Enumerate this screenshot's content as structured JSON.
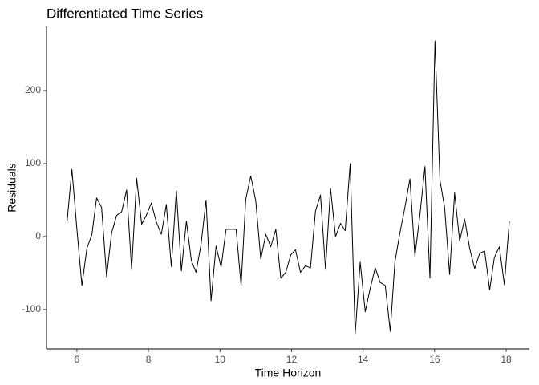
{
  "chart_data": {
    "type": "line",
    "title": "Differentiated Time Series",
    "x_label": "Time Horizon",
    "y_label": "Residuals",
    "x": [
      5.72,
      5.86,
      6.0,
      6.14,
      6.28,
      6.42,
      6.55,
      6.69,
      6.83,
      6.97,
      7.11,
      7.25,
      7.39,
      7.53,
      7.67,
      7.81,
      7.94,
      8.08,
      8.22,
      8.36,
      8.5,
      8.64,
      8.78,
      8.92,
      9.06,
      9.2,
      9.33,
      9.47,
      9.61,
      9.75,
      9.89,
      10.03,
      10.17,
      10.31,
      10.45,
      10.59,
      10.72,
      10.86,
      11.0,
      11.14,
      11.28,
      11.42,
      11.56,
      11.7,
      11.84,
      11.98,
      12.11,
      12.25,
      12.39,
      12.53,
      12.67,
      12.81,
      12.95,
      13.09,
      13.23,
      13.37,
      13.5,
      13.64,
      13.78,
      13.92,
      14.06,
      14.2,
      14.34,
      14.48,
      14.62,
      14.76,
      14.89,
      15.03,
      15.17,
      15.31,
      15.45,
      15.59,
      15.73,
      15.87,
      16.01,
      16.15,
      16.28,
      16.42,
      16.56,
      16.7,
      16.84,
      16.98,
      17.12,
      17.26,
      17.4,
      17.54,
      17.67,
      17.81,
      17.95,
      18.09
    ],
    "series": [
      {
        "name": "Residuals",
        "color": "#000000",
        "values": [
          18,
          92,
          10,
          -67,
          -16,
          3,
          53,
          40,
          -55,
          5,
          29,
          34,
          64,
          -45,
          80,
          17,
          29,
          46,
          20,
          3,
          44,
          -41,
          63,
          -47,
          21,
          -33,
          -49,
          -11,
          50,
          -88,
          -13,
          -42,
          10,
          10,
          10,
          -67,
          51,
          83,
          49,
          -31,
          3,
          -14,
          10,
          -57,
          -49,
          -25,
          -18,
          -49,
          -40,
          -43,
          35,
          57,
          -45,
          66,
          0,
          18,
          8,
          100,
          -133,
          -35,
          -103,
          -71,
          -43,
          -63,
          -67,
          -130,
          -35,
          5,
          40,
          79,
          -27,
          30,
          96,
          -57,
          268,
          77,
          40,
          -52,
          60,
          -6,
          24,
          -16,
          -44,
          -23,
          -20,
          -73,
          -29,
          -14,
          -66,
          21
        ]
      }
    ],
    "xlim": [
      5.15,
      18.65
    ],
    "xticks": [
      6,
      8,
      10,
      12,
      14,
      16,
      18
    ],
    "ylim": [
      -154,
      288
    ],
    "yticks": [
      -100,
      0,
      100,
      200
    ],
    "grid": false
  }
}
